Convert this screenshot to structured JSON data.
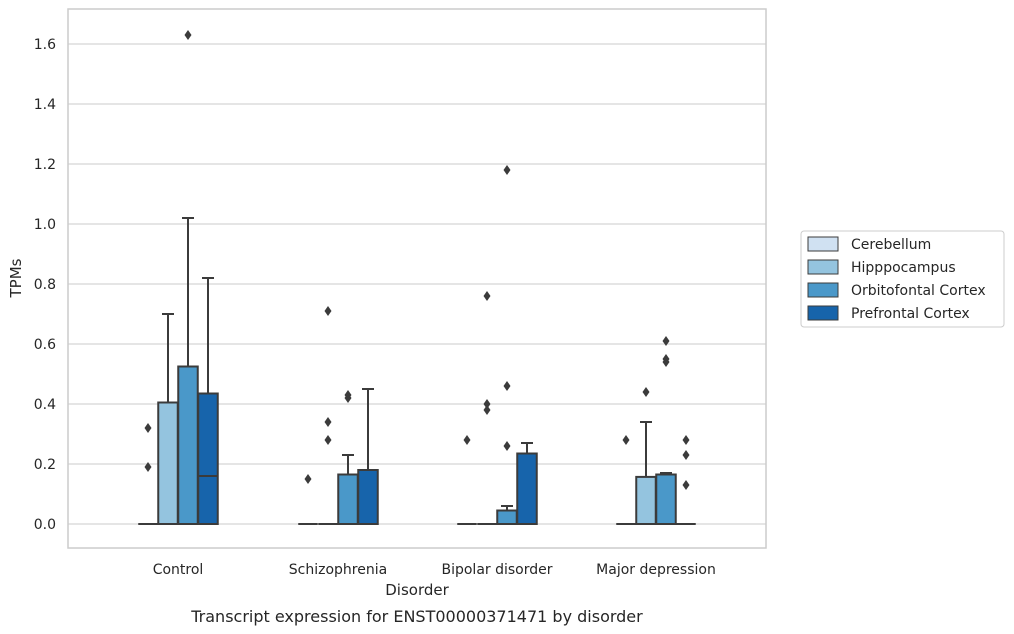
{
  "chart_data": {
    "type": "box",
    "title": "",
    "caption": "Transcript expression for ENST00000371471 by disorder",
    "xlabel": "Disorder",
    "ylabel": "TPMs",
    "ylim": [
      -0.08,
      1.72
    ],
    "yticks": [
      "0.0",
      "0.2",
      "0.4",
      "0.6",
      "0.8",
      "1.0",
      "1.2",
      "1.4",
      "1.6"
    ],
    "grid": "horizontal",
    "legend_position": "right",
    "categories": [
      "Control",
      "Schizophrenia",
      "Bipolar disorder",
      "Major depression"
    ],
    "series": [
      {
        "name": "Cerebellum",
        "color": "#d0e1f2",
        "boxes": [
          {
            "q1": 0,
            "median": 0,
            "q3": 0,
            "whisker_low": 0,
            "whisker_high": 0,
            "outliers": [
              0.19,
              0.32
            ]
          },
          {
            "q1": 0,
            "median": 0,
            "q3": 0,
            "whisker_low": 0,
            "whisker_high": 0,
            "outliers": [
              0.15
            ]
          },
          {
            "q1": 0,
            "median": 0,
            "q3": 0,
            "whisker_low": 0,
            "whisker_high": 0,
            "outliers": [
              0.28
            ]
          },
          {
            "q1": 0,
            "median": 0,
            "q3": 0,
            "whisker_low": 0,
            "whisker_high": 0,
            "outliers": [
              0.28
            ]
          }
        ]
      },
      {
        "name": "Hipppocampus",
        "color": "#94c4df",
        "boxes": [
          {
            "q1": 0,
            "median": 0,
            "q3": 0.405,
            "whisker_low": 0,
            "whisker_high": 0.7,
            "outliers": []
          },
          {
            "q1": 0,
            "median": 0,
            "q3": 0,
            "whisker_low": 0,
            "whisker_high": 0,
            "outliers": [
              0.28,
              0.34,
              0.71
            ]
          },
          {
            "q1": 0,
            "median": 0,
            "q3": 0,
            "whisker_low": 0,
            "whisker_high": 0,
            "outliers": [
              0.38,
              0.4,
              0.76
            ]
          },
          {
            "q1": 0,
            "median": 0,
            "q3": 0.157,
            "whisker_low": 0,
            "whisker_high": 0.34,
            "outliers": [
              0.44
            ]
          }
        ]
      },
      {
        "name": "Orbitofontal Cortex",
        "color": "#4a98c9",
        "boxes": [
          {
            "q1": 0,
            "median": 0,
            "q3": 0.525,
            "whisker_low": 0,
            "whisker_high": 1.02,
            "outliers": [
              1.63
            ]
          },
          {
            "q1": 0,
            "median": 0,
            "q3": 0.165,
            "whisker_low": 0,
            "whisker_high": 0.23,
            "outliers": [
              0.42,
              0.43
            ]
          },
          {
            "q1": 0,
            "median": 0,
            "q3": 0.045,
            "whisker_low": 0,
            "whisker_high": 0.06,
            "outliers": [
              0.26,
              0.46,
              1.18
            ]
          },
          {
            "q1": 0,
            "median": 0,
            "q3": 0.165,
            "whisker_low": 0,
            "whisker_high": 0.17,
            "outliers": [
              0.54,
              0.55,
              0.61
            ]
          }
        ]
      },
      {
        "name": "Prefrontal Cortex",
        "color": "#1764ab",
        "boxes": [
          {
            "q1": 0,
            "median": 0.16,
            "q3": 0.435,
            "whisker_low": 0,
            "whisker_high": 0.82,
            "outliers": []
          },
          {
            "q1": 0,
            "median": 0,
            "q3": 0.18,
            "whisker_low": 0,
            "whisker_high": 0.45,
            "outliers": []
          },
          {
            "q1": 0,
            "median": 0,
            "q3": 0.235,
            "whisker_low": 0,
            "whisker_high": 0.27,
            "outliers": []
          },
          {
            "q1": 0,
            "median": 0,
            "q3": 0,
            "whisker_low": 0,
            "whisker_high": 0,
            "outliers": [
              0.13,
              0.23,
              0.28
            ]
          }
        ]
      }
    ],
    "colors": {
      "grid": "#d5d5d5",
      "frame": "#cccccc",
      "line": "#3b3b3b",
      "text": "#262626"
    }
  }
}
